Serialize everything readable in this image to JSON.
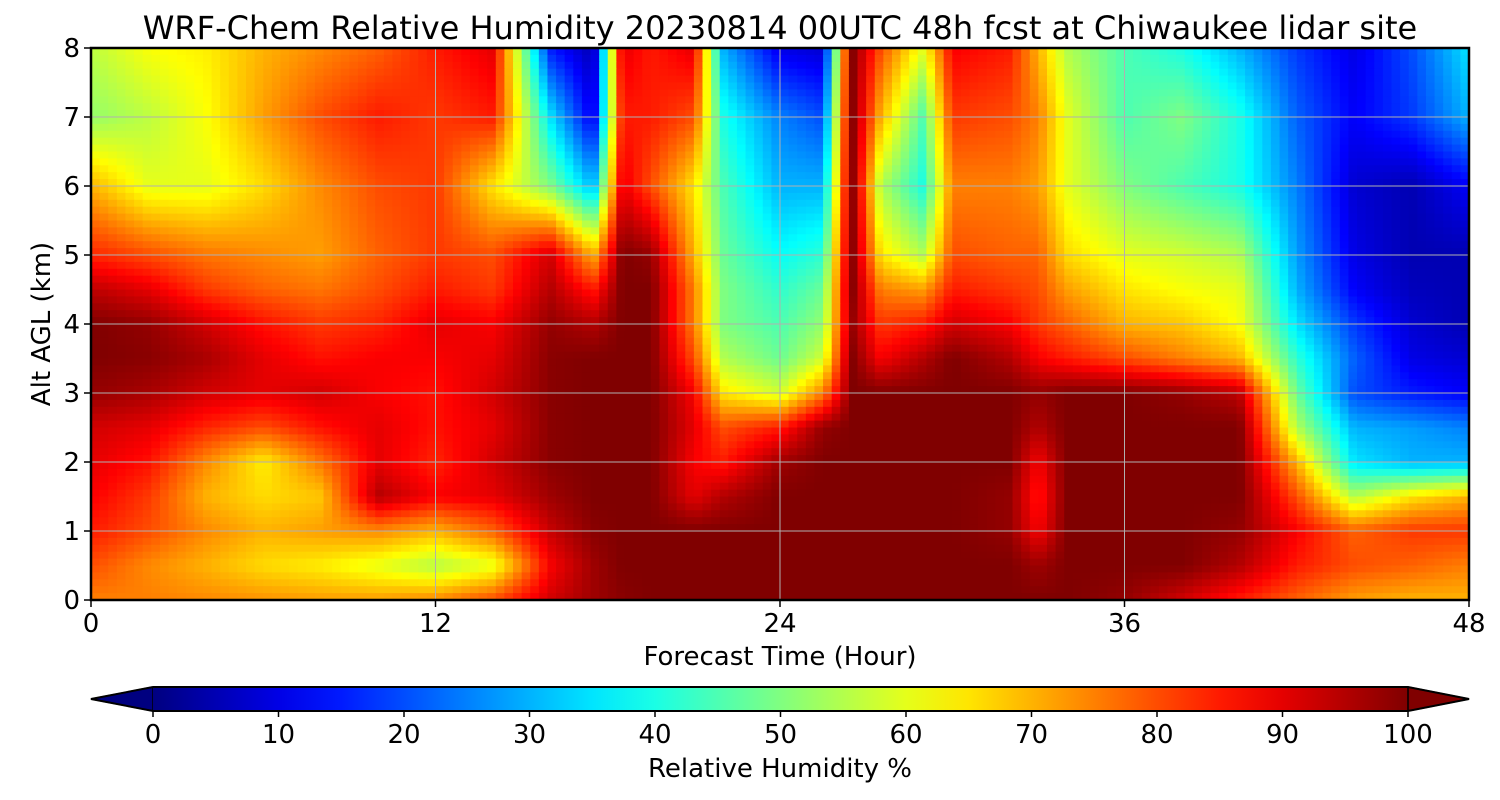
{
  "chart_data": {
    "type": "heatmap",
    "title": "WRF-Chem Relative Humidity 20230814 00UTC 48h fcst at Chiwaukee lidar site",
    "xlabel": "Forecast Time (Hour)",
    "ylabel": "Alt AGL (km)",
    "xlim": [
      0,
      48
    ],
    "ylim": [
      0,
      8
    ],
    "x_ticks": [
      0,
      12,
      24,
      36,
      48
    ],
    "y_ticks": [
      0,
      1,
      2,
      3,
      4,
      5,
      6,
      7,
      8
    ],
    "grid": true,
    "colorbar": {
      "label": "Relative Humidity %",
      "range": [
        0,
        100
      ],
      "ticks": [
        0,
        10,
        20,
        30,
        40,
        50,
        60,
        70,
        80,
        90,
        100
      ],
      "colormap": "jet",
      "extend": "both",
      "under_color": "#000080",
      "over_color": "#800000"
    },
    "x": [
      0,
      2,
      4,
      6,
      8,
      10,
      12,
      14,
      16,
      17.5,
      18.5,
      19.5,
      21,
      22,
      24,
      25.5,
      26.5,
      27.5,
      29,
      30,
      32,
      33,
      34,
      36,
      38,
      40,
      42,
      44,
      46,
      48
    ],
    "y": [
      0,
      0.5,
      1,
      1.5,
      2,
      2.5,
      3,
      3.5,
      4,
      4.5,
      5,
      6,
      7,
      8
    ],
    "z": [
      [
        75,
        75,
        74,
        73,
        72,
        72,
        74,
        80,
        92,
        97,
        99,
        100,
        100,
        100,
        100,
        100,
        100,
        100,
        100,
        100,
        100,
        100,
        100,
        98,
        92,
        85,
        78,
        72,
        70,
        70
      ],
      [
        80,
        74,
        70,
        66,
        64,
        60,
        55,
        60,
        88,
        97,
        100,
        100,
        100,
        100,
        100,
        100,
        100,
        100,
        100,
        100,
        100,
        97,
        100,
        100,
        100,
        95,
        85,
        80,
        78,
        75
      ],
      [
        85,
        80,
        74,
        70,
        72,
        74,
        70,
        78,
        93,
        99,
        100,
        100,
        100,
        100,
        100,
        100,
        100,
        100,
        100,
        100,
        98,
        88,
        100,
        100,
        100,
        98,
        88,
        78,
        82,
        82
      ],
      [
        88,
        82,
        70,
        66,
        68,
        95,
        88,
        90,
        97,
        100,
        100,
        100,
        90,
        95,
        100,
        100,
        100,
        100,
        100,
        100,
        98,
        85,
        100,
        100,
        100,
        100,
        80,
        55,
        65,
        70
      ],
      [
        90,
        86,
        74,
        64,
        76,
        90,
        84,
        92,
        99,
        100,
        100,
        100,
        88,
        85,
        97,
        100,
        100,
        100,
        100,
        100,
        100,
        88,
        100,
        100,
        100,
        100,
        70,
        35,
        30,
        30
      ],
      [
        92,
        90,
        84,
        80,
        86,
        90,
        86,
        90,
        99,
        100,
        100,
        100,
        90,
        80,
        85,
        98,
        100,
        100,
        100,
        100,
        100,
        95,
        100,
        100,
        100,
        100,
        55,
        30,
        28,
        25
      ],
      [
        98,
        96,
        92,
        90,
        92,
        88,
        86,
        92,
        99,
        100,
        100,
        100,
        88,
        65,
        58,
        75,
        100,
        100,
        100,
        100,
        100,
        98,
        100,
        100,
        98,
        94,
        48,
        20,
        15,
        12
      ],
      [
        100,
        99,
        96,
        90,
        86,
        88,
        88,
        90,
        99,
        100,
        100,
        100,
        80,
        55,
        48,
        58,
        100,
        88,
        95,
        100,
        95,
        88,
        85,
        80,
        75,
        70,
        42,
        22,
        10,
        8
      ],
      [
        100,
        98,
        92,
        86,
        82,
        84,
        90,
        88,
        98,
        95,
        100,
        100,
        75,
        50,
        45,
        52,
        98,
        82,
        85,
        92,
        88,
        82,
        78,
        70,
        68,
        62,
        35,
        18,
        8,
        5
      ],
      [
        94,
        90,
        82,
        78,
        76,
        80,
        85,
        82,
        95,
        85,
        100,
        100,
        75,
        50,
        42,
        48,
        100,
        75,
        72,
        85,
        82,
        80,
        72,
        65,
        62,
        60,
        30,
        12,
        6,
        5
      ],
      [
        84,
        80,
        76,
        74,
        72,
        78,
        82,
        80,
        92,
        70,
        100,
        98,
        70,
        48,
        38,
        42,
        100,
        65,
        55,
        80,
        78,
        78,
        66,
        60,
        58,
        55,
        28,
        10,
        5,
        5
      ],
      [
        70,
        60,
        60,
        66,
        74,
        80,
        82,
        65,
        50,
        30,
        90,
        80,
        65,
        45,
        30,
        30,
        100,
        55,
        40,
        75,
        75,
        72,
        60,
        50,
        45,
        40,
        25,
        8,
        5,
        12
      ],
      [
        52,
        56,
        62,
        72,
        80,
        85,
        82,
        85,
        35,
        10,
        85,
        85,
        80,
        40,
        25,
        20,
        100,
        70,
        45,
        82,
        80,
        75,
        60,
        45,
        50,
        40,
        22,
        12,
        18,
        30
      ],
      [
        56,
        62,
        64,
        70,
        74,
        78,
        85,
        90,
        15,
        5,
        90,
        85,
        90,
        30,
        10,
        8,
        100,
        80,
        60,
        88,
        85,
        70,
        55,
        45,
        40,
        30,
        18,
        10,
        20,
        35
      ]
    ]
  }
}
